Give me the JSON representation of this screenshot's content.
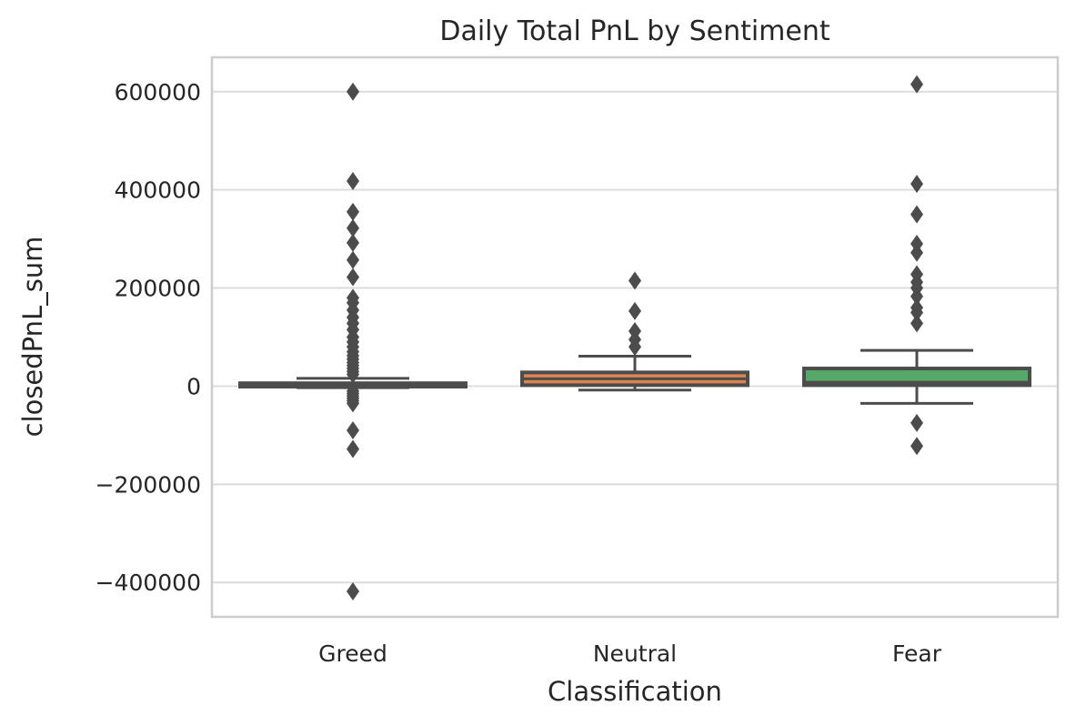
{
  "colors": {
    "background": "#ffffff",
    "grid": "#dcdcdc",
    "frame": "#cccccc",
    "box_edge": "#4c4c4c",
    "text": "#262626",
    "greed": "#4c72b0",
    "neutral": "#dd8452",
    "fear": "#55a868"
  },
  "chart_data": {
    "type": "box",
    "title": "Daily Total PnL by Sentiment",
    "xlabel": "Classification",
    "ylabel": "closedPnL_sum",
    "categories": [
      "Greed",
      "Neutral",
      "Fear"
    ],
    "ylim": [
      -470000,
      670000
    ],
    "yticks": [
      -400000,
      -200000,
      0,
      200000,
      400000,
      600000
    ],
    "ytick_labels": [
      "−400000",
      "−200000",
      "0",
      "200000",
      "400000",
      "600000"
    ],
    "grid": true,
    "legend": "none",
    "series": [
      {
        "category": "Greed",
        "color": "#4c72b0",
        "whisker_low": -3000,
        "q1": -1000,
        "median": 2000,
        "q3": 6000,
        "whisker_high": 16000,
        "outliers": [
          600000,
          418000,
          355000,
          322000,
          292000,
          257000,
          222000,
          180000,
          170000,
          155000,
          140000,
          128000,
          115000,
          100000,
          90000,
          80000,
          70000,
          62000,
          55000,
          48000,
          42000,
          36000,
          30000,
          24000,
          -10000,
          -15000,
          -20000,
          -25000,
          -30000,
          -35000,
          -90000,
          -128000,
          -418000
        ]
      },
      {
        "category": "Neutral",
        "color": "#dd8452",
        "whisker_low": -8000,
        "q1": 2000,
        "median": 15000,
        "q3": 28000,
        "whisker_high": 61000,
        "outliers": [
          215000,
          153000,
          112000,
          95000,
          80000
        ]
      },
      {
        "category": "Fear",
        "color": "#55a868",
        "whisker_low": -35000,
        "q1": 2000,
        "median": 8000,
        "q3": 36000,
        "whisker_high": 73000,
        "outliers": [
          615000,
          412000,
          350000,
          290000,
          272000,
          228000,
          212000,
          200000,
          183000,
          160000,
          150000,
          128000,
          -75000,
          -122000
        ]
      }
    ]
  }
}
